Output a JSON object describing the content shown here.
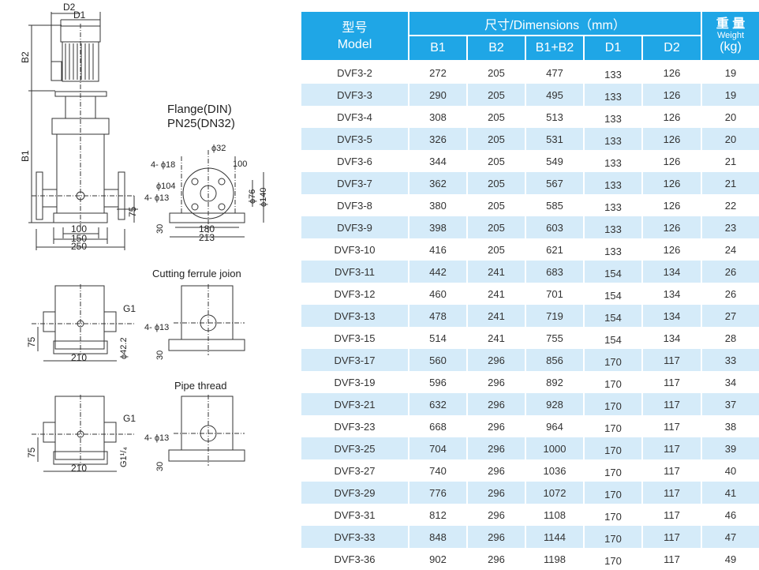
{
  "drawing": {
    "main_labels": {
      "d2": "D2",
      "d1": "D1",
      "b2": "B2",
      "b1": "B1",
      "h75": "75",
      "w100": "100",
      "w150": "150",
      "w250": "250"
    },
    "flange": {
      "title1": "Flange(DIN)",
      "title2": "PN25(DN32)",
      "phi32": "ϕ32",
      "holes18": "4- ϕ18",
      "c100": "100",
      "phi104": "ϕ104",
      "holes13": "4- ϕ13",
      "phi76": "ϕ76",
      "phi140": "ϕ140",
      "h30": "30",
      "w180": "180",
      "w213": "213"
    },
    "ferrule": {
      "title": "Cutting  ferrule joion",
      "g1": "G1",
      "h75": "75",
      "phi42": "ϕ42.2",
      "w210": "210",
      "holes13": "4- ϕ13",
      "h30": "30"
    },
    "pipe": {
      "title": "Pipe  thread",
      "g1": "G1",
      "h75": "75",
      "g114": "G1¹/₄",
      "w210": "210",
      "holes13": "4- ϕ13",
      "h30": "30"
    }
  },
  "table": {
    "header": {
      "model_cn": "型号",
      "model_en": "Model",
      "dimensions": "尺寸/Dimensions（mm）",
      "weight_cn": "重 量",
      "weight_en": "Weight",
      "weight_unit": "(kg)",
      "columns": [
        "B1",
        "B2",
        "B1+B2",
        "D1",
        "D2"
      ]
    },
    "rows": [
      [
        "DVF3-2",
        "272",
        "205",
        "477",
        "133",
        "126",
        "19"
      ],
      [
        "DVF3-3",
        "290",
        "205",
        "495",
        "133",
        "126",
        "19"
      ],
      [
        "DVF3-4",
        "308",
        "205",
        "513",
        "133",
        "126",
        "20"
      ],
      [
        "DVF3-5",
        "326",
        "205",
        "531",
        "133",
        "126",
        "20"
      ],
      [
        "DVF3-6",
        "344",
        "205",
        "549",
        "133",
        "126",
        "21"
      ],
      [
        "DVF3-7",
        "362",
        "205",
        "567",
        "133",
        "126",
        "21"
      ],
      [
        "DVF3-8",
        "380",
        "205",
        "585",
        "133",
        "126",
        "22"
      ],
      [
        "DVF3-9",
        "398",
        "205",
        "603",
        "133",
        "126",
        "23"
      ],
      [
        "DVF3-10",
        "416",
        "205",
        "621",
        "133",
        "126",
        "24"
      ],
      [
        "DVF3-11",
        "442",
        "241",
        "683",
        "154",
        "134",
        "26"
      ],
      [
        "DVF3-12",
        "460",
        "241",
        "701",
        "154",
        "134",
        "26"
      ],
      [
        "DVF3-13",
        "478",
        "241",
        "719",
        "154",
        "134",
        "27"
      ],
      [
        "DVF3-15",
        "514",
        "241",
        "755",
        "154",
        "134",
        "28"
      ],
      [
        "DVF3-17",
        "560",
        "296",
        "856",
        "170",
        "117",
        "33"
      ],
      [
        "DVF3-19",
        "596",
        "296",
        "892",
        "170",
        "117",
        "34"
      ],
      [
        "DVF3-21",
        "632",
        "296",
        "928",
        "170",
        "117",
        "37"
      ],
      [
        "DVF3-23",
        "668",
        "296",
        "964",
        "170",
        "117",
        "38"
      ],
      [
        "DVF3-25",
        "704",
        "296",
        "1000",
        "170",
        "117",
        "39"
      ],
      [
        "DVF3-27",
        "740",
        "296",
        "1036",
        "170",
        "117",
        "40"
      ],
      [
        "DVF3-29",
        "776",
        "296",
        "1072",
        "170",
        "117",
        "41"
      ],
      [
        "DVF3-31",
        "812",
        "296",
        "1108",
        "170",
        "117",
        "46"
      ],
      [
        "DVF3-33",
        "848",
        "296",
        "1144",
        "170",
        "117",
        "47"
      ],
      [
        "DVF3-36",
        "902",
        "296",
        "1198",
        "170",
        "117",
        "49"
      ]
    ],
    "colors": {
      "header": "#1fa6e6",
      "alt_row": "#d5ebf9"
    }
  }
}
